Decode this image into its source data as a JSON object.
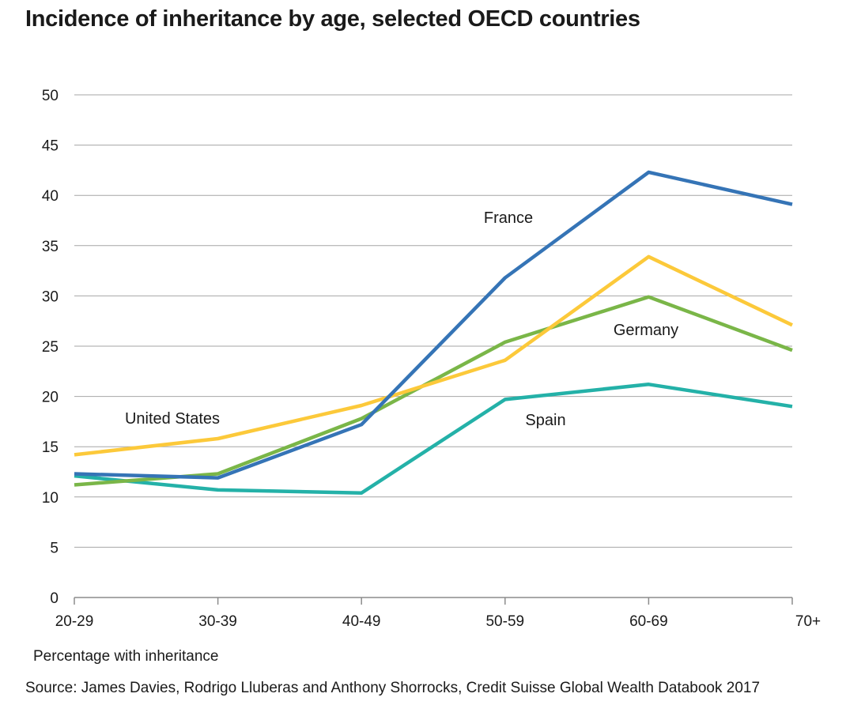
{
  "title": "Incidence of inheritance by age, selected OECD countries",
  "footnote": "Percentage with inheritance",
  "source": "Source: James Davies, Rodrigo Lluberas and Anthony Shorrocks, Credit Suisse Global Wealth Databook 2017",
  "chart_data": {
    "type": "line",
    "title": "Incidence of inheritance by age, selected OECD countries",
    "xlabel": "",
    "ylabel": "Percentage with inheritance",
    "categories": [
      "20-29",
      "30-39",
      "40-49",
      "50-59",
      "60-69",
      "70+"
    ],
    "ylim": [
      0,
      50
    ],
    "yticks": [
      "0",
      "5",
      "10",
      "15",
      "20",
      "25",
      "30",
      "35",
      "40",
      "45",
      "50"
    ],
    "grid": true,
    "series": [
      {
        "name": "France",
        "label": "France",
        "color": "#3574b6",
        "values": [
          12.3,
          11.9,
          17.2,
          31.8,
          42.3,
          39.1
        ]
      },
      {
        "name": "United States",
        "label": "United States",
        "color": "#fcc93a",
        "values": [
          14.2,
          15.8,
          19.1,
          23.6,
          33.9,
          27.1
        ]
      },
      {
        "name": "Germany",
        "label": "Germany",
        "color": "#7ab648",
        "values": [
          11.2,
          12.3,
          17.8,
          25.4,
          29.9,
          24.6
        ]
      },
      {
        "name": "Spain",
        "label": "Spain",
        "color": "#24b1a8",
        "values": [
          12.1,
          10.7,
          10.4,
          19.7,
          21.2,
          19.0
        ]
      }
    ]
  }
}
